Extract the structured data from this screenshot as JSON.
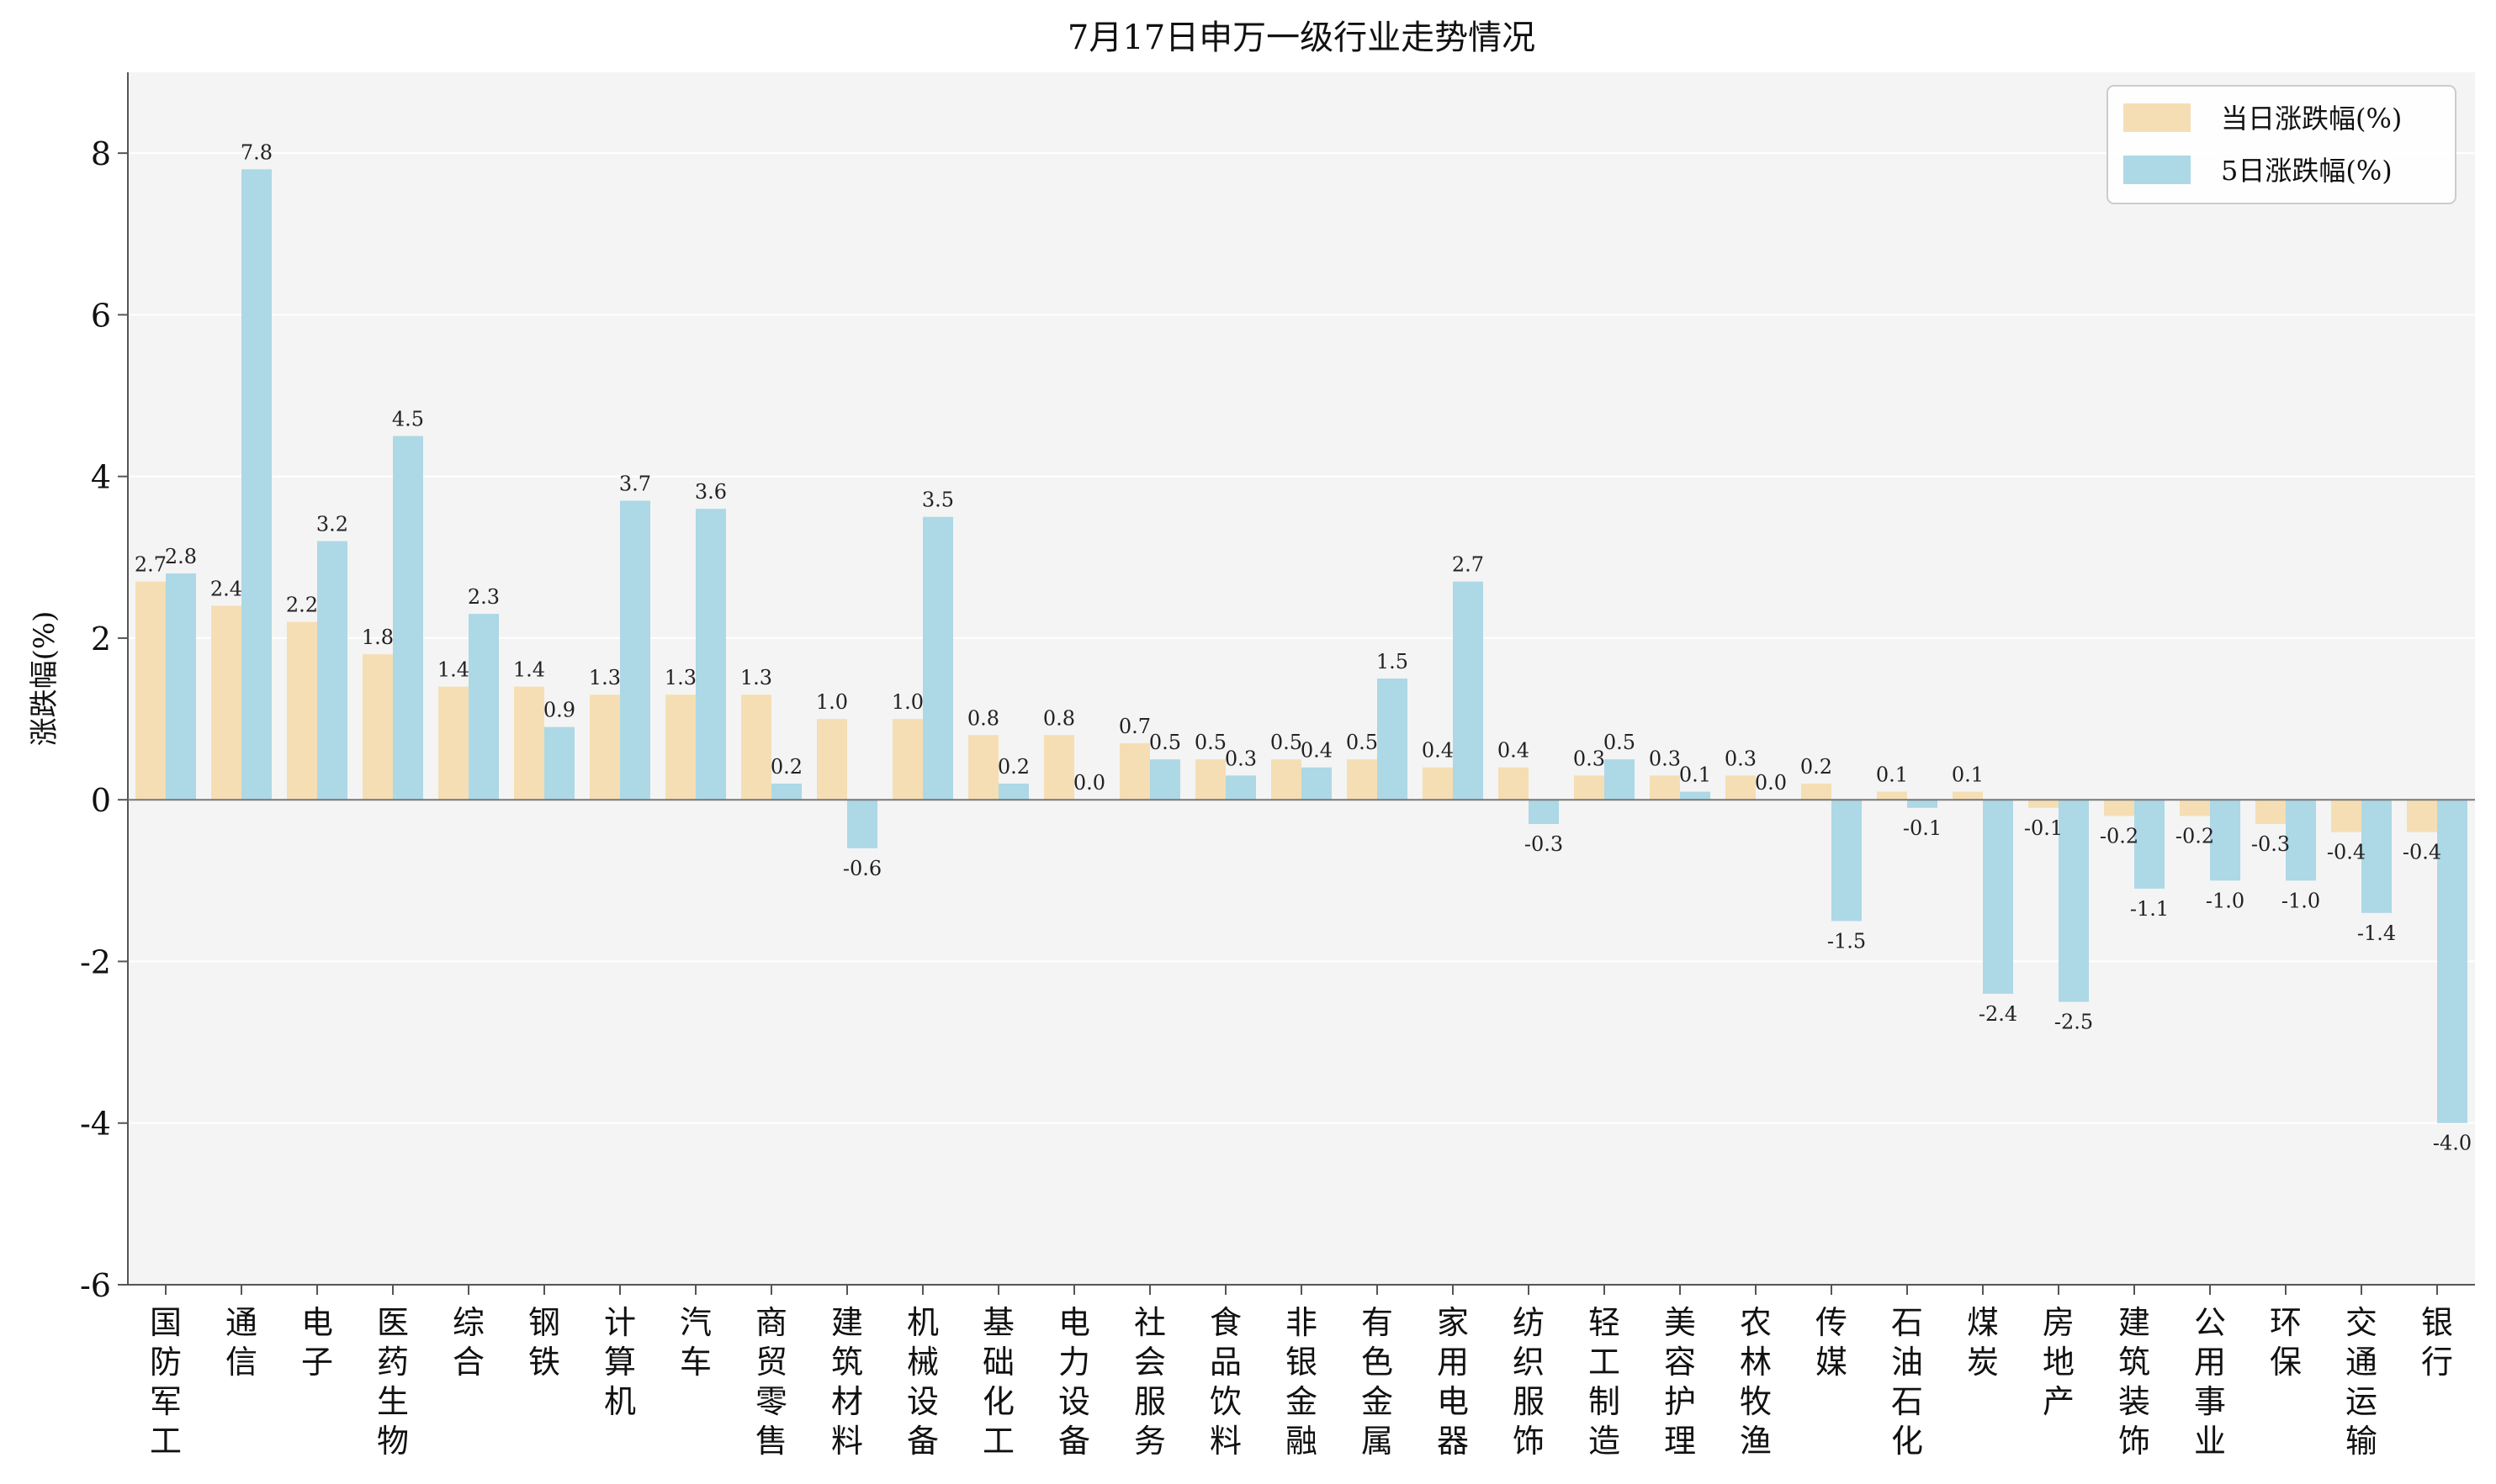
{
  "chart_data": {
    "type": "bar",
    "title": "7月17日申万一级行业走势情况",
    "xlabel": "",
    "ylabel": "涨跌幅(%)",
    "ylim": [
      -6,
      9
    ],
    "yticks": [
      8,
      6,
      4,
      2,
      0,
      -2,
      -4,
      -6
    ],
    "ytick_labels": [
      "8",
      "6",
      "4",
      "2",
      "0",
      "-2",
      "-4",
      "-6"
    ],
    "grid": "horizontal",
    "legend_position": "top-right",
    "background": "#f4f4f4",
    "categories": [
      "国防军工",
      "通信",
      "电子",
      "医药生物",
      "综合",
      "钢铁",
      "计算机",
      "汽车",
      "商贸零售",
      "建筑材料",
      "机械设备",
      "基础化工",
      "电力设备",
      "社会服务",
      "食品饮料",
      "非银金融",
      "有色金属",
      "家用电器",
      "纺织服饰",
      "轻工制造",
      "美容护理",
      "农林牧渔",
      "传媒",
      "石油石化",
      "煤炭",
      "房地产",
      "建筑装饰",
      "公用事业",
      "环保",
      "交通运输",
      "银行"
    ],
    "series": [
      {
        "name": "当日涨跌幅(%)",
        "color": "#f5deb3",
        "values": [
          2.7,
          2.4,
          2.2,
          1.8,
          1.4,
          1.4,
          1.3,
          1.3,
          1.3,
          1.0,
          1.0,
          0.8,
          0.8,
          0.7,
          0.5,
          0.5,
          0.5,
          0.4,
          0.4,
          0.3,
          0.3,
          0.3,
          0.2,
          0.1,
          0.1,
          -0.1,
          -0.2,
          -0.2,
          -0.3,
          -0.4,
          -0.4
        ],
        "labels": [
          "2.7",
          "2.4",
          "2.2",
          "1.8",
          "1.4",
          "1.4",
          "1.3",
          "1.3",
          "1.3",
          "1.0",
          "1.0",
          "0.8",
          "0.8",
          "0.7",
          "0.5",
          "0.5",
          "0.5",
          "0.4",
          "0.4",
          "0.3",
          "0.3",
          "0.3",
          "0.2",
          "0.1",
          "0.1",
          "-0.1",
          "-0.2",
          "-0.2",
          "-0.3",
          "-0.4",
          "-0.4"
        ]
      },
      {
        "name": "5日涨跌幅(%)",
        "color": "#add8e6",
        "values": [
          2.8,
          7.8,
          3.2,
          4.5,
          2.3,
          0.9,
          3.7,
          3.6,
          0.2,
          -0.6,
          3.5,
          0.2,
          0.0,
          0.5,
          0.3,
          0.4,
          1.5,
          2.7,
          -0.3,
          0.5,
          0.1,
          0.0,
          -1.5,
          -0.1,
          -2.4,
          -2.5,
          -1.1,
          -1.0,
          -1.0,
          -1.4,
          -4.0
        ],
        "labels": [
          "2.8",
          "7.8",
          "3.2",
          "4.5",
          "2.3",
          "0.9",
          "3.7",
          "3.6",
          "0.2",
          "-0.6",
          "3.5",
          "0.2",
          "0.0",
          "0.5",
          "0.3",
          "0.4",
          "1.5",
          "2.7",
          "-0.3",
          "0.5",
          "0.1",
          "0.0",
          "-1.5",
          "-0.1",
          "-2.4",
          "-2.5",
          "-1.1",
          "-1.0",
          "-1.0",
          "-1.4",
          "-4.0"
        ]
      }
    ]
  }
}
